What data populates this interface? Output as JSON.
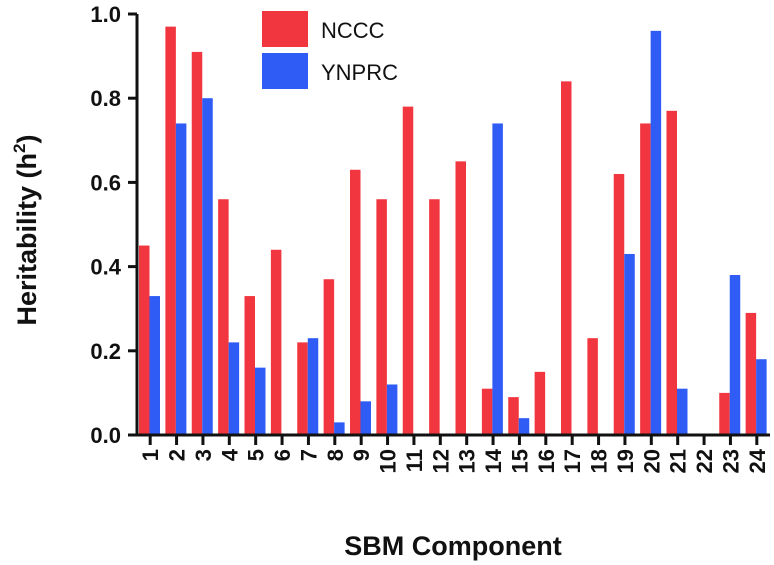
{
  "chart_data": {
    "type": "bar",
    "xlabel": "SBM Component",
    "ylabel_main": "Heritability (h",
    "ylabel_sup": "2",
    "ylabel_end": ")",
    "ylim": [
      0,
      1.0
    ],
    "yticks": [
      "0.0",
      "0.2",
      "0.4",
      "0.6",
      "0.8",
      "1.0"
    ],
    "categories": [
      "1",
      "2",
      "3",
      "4",
      "5",
      "6",
      "7",
      "8",
      "9",
      "10",
      "11",
      "12",
      "13",
      "14",
      "15",
      "16",
      "17",
      "18",
      "19",
      "20",
      "21",
      "22",
      "23",
      "24"
    ],
    "legend_position": "top-center",
    "series": [
      {
        "name": "NCCC",
        "color": "#f2363f",
        "values": [
          0.45,
          0.97,
          0.91,
          0.56,
          0.33,
          0.44,
          0.22,
          0.37,
          0.63,
          0.56,
          0.78,
          0.56,
          0.65,
          0.11,
          0.09,
          0.15,
          0.84,
          0.23,
          0.62,
          0.74,
          0.77,
          0.0,
          0.1,
          0.29
        ]
      },
      {
        "name": "YNPRC",
        "color": "#2f5cf5",
        "values": [
          0.33,
          0.74,
          0.8,
          0.22,
          0.16,
          0.0,
          0.23,
          0.03,
          0.08,
          0.12,
          0.0,
          0.0,
          0.0,
          0.74,
          0.04,
          0.0,
          0.0,
          0.0,
          0.43,
          0.96,
          0.11,
          0.0,
          0.38,
          0.18
        ]
      }
    ]
  }
}
